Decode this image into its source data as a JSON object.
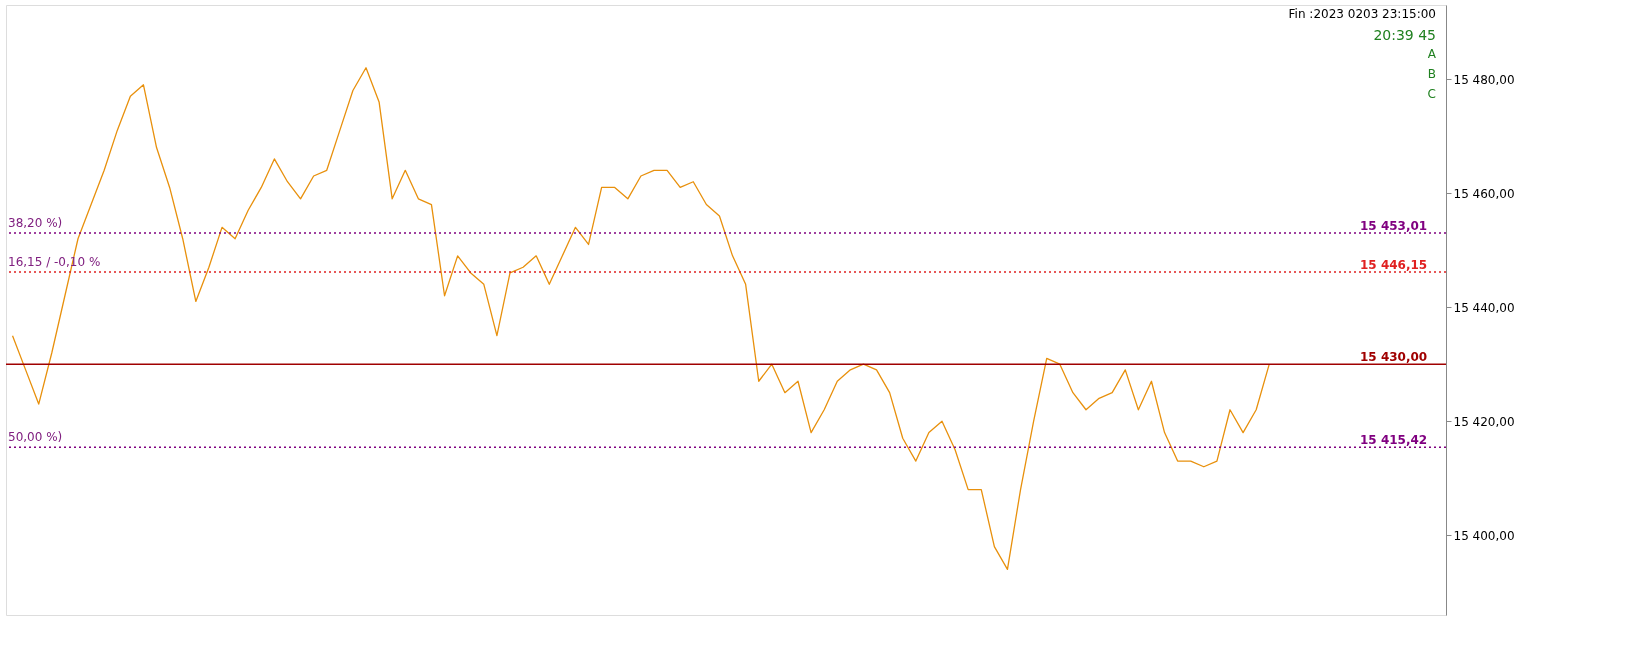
{
  "chart_data": {
    "type": "line",
    "categories": [
      null,
      null,
      null,
      null,
      null,
      null,
      null,
      null,
      null,
      null,
      null,
      null,
      null,
      null,
      null,
      null,
      null,
      null,
      null,
      null,
      null,
      null,
      null,
      null,
      null,
      null,
      null,
      null,
      null,
      null,
      null,
      null,
      null,
      null,
      null,
      null,
      null,
      null,
      null,
      null,
      null,
      null,
      null,
      null,
      null,
      null,
      null,
      null,
      null,
      null,
      null,
      null,
      null,
      null,
      null,
      null,
      null,
      null,
      null,
      null,
      null,
      null,
      null,
      null,
      null,
      null,
      null,
      null,
      null,
      null,
      null,
      null,
      null,
      null,
      null,
      null,
      null,
      null,
      null,
      null,
      null,
      null,
      null,
      null,
      null,
      null,
      null,
      null,
      null,
      null,
      null,
      null,
      null,
      null,
      null,
      null,
      null,
      null,
      null,
      null,
      null,
      null,
      null,
      null,
      null,
      null,
      null,
      null,
      null,
      null
    ],
    "series": [
      {
        "color": "#e8900c",
        "values": [
          15435,
          15429,
          15423,
          15432,
          15442,
          15452,
          15458,
          15464,
          15471,
          15477,
          15479,
          15468,
          15461,
          15452,
          15441,
          15447,
          15454,
          15452,
          15457,
          15461,
          15466,
          15462,
          15459,
          15463,
          15464,
          15471,
          15478,
          15482,
          15476,
          15459,
          15464,
          15459,
          15458,
          15442,
          15449,
          15446,
          15444,
          15435,
          15446,
          15447,
          15449,
          15444,
          15449,
          15454,
          15451,
          15461,
          15461,
          15459,
          15463,
          15464,
          15464,
          15461,
          15462,
          15458,
          15456,
          15449,
          15444,
          15427,
          15430,
          15425,
          15427,
          15418,
          15422,
          15427,
          15429,
          15430,
          15429,
          15425,
          15417,
          15413,
          15418,
          15420,
          15415,
          15408,
          15408,
          15398,
          15394,
          15408,
          15420,
          15431,
          15430,
          15425,
          15422,
          15424,
          15425,
          15429,
          15422,
          15427,
          15418,
          15413,
          15413,
          15412,
          15413,
          15422,
          15418,
          15422,
          15430,
          null,
          null,
          null,
          null,
          null,
          null,
          null,
          null,
          null,
          null,
          null,
          null,
          null
        ]
      }
    ],
    "ylim": [
      15386,
      15493
    ],
    "yticks": [
      {
        "value": 15400,
        "label": "15 400,00"
      },
      {
        "value": 15420,
        "label": "15 420,00"
      },
      {
        "value": 15440,
        "label": "15 440,00"
      },
      {
        "value": 15460,
        "label": "15 460,00"
      },
      {
        "value": 15480,
        "label": "15 480,00"
      }
    ],
    "tick_labels": "y",
    "ref_lines": [
      {
        "axis": "y",
        "value": 15453.01,
        "label": "15 453,01",
        "color": "#800080",
        "line_style": "dotted"
      },
      {
        "axis": "y",
        "value": 15446.15,
        "label": "15 446,15",
        "color": "#e02020",
        "line_style": "dotted"
      },
      {
        "axis": "y",
        "value": 15430.0,
        "label": "15 430,00",
        "color": "#a00000",
        "line_style": "solid"
      },
      {
        "axis": "y",
        "value": 15415.42,
        "label": "15 415,42",
        "color": "#800080",
        "line_style": "dotted"
      }
    ],
    "annotations": [
      {
        "text": "38,20 %)",
        "y": 15453.01
      },
      {
        "text": "16,15 / -0,10 %",
        "y": 15446.15
      },
      {
        "text": "50,00 %)",
        "y": 15415.42
      },
      "Fin :2023 0203 23:15:00",
      "20:39 45",
      "A",
      "B",
      "C"
    ]
  }
}
